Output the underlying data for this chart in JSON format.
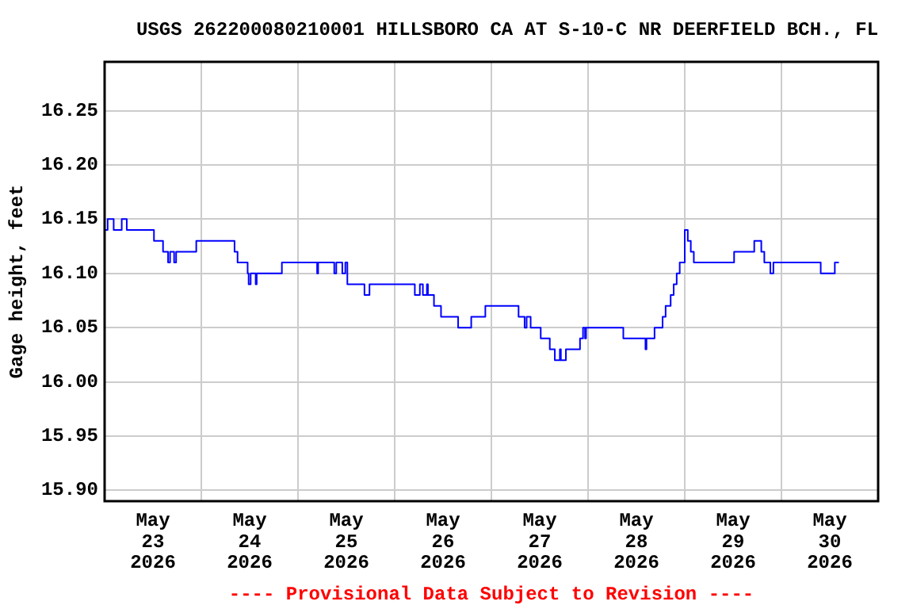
{
  "chart_data": {
    "type": "step",
    "title": "USGS 262200080210001 HILLSBORO CA AT S-10-C NR DEERFIELD BCH., FL",
    "ylabel": "Gage height, feet",
    "annotations": [
      "---- Provisional Data Subject to Revision ----"
    ],
    "x": [
      "2026-05-23T00:00",
      "2026-05-23T00:45",
      "2026-05-23T02:15",
      "2026-05-23T04:15",
      "2026-05-23T05:30",
      "2026-05-23T12:15",
      "2026-05-23T14:30",
      "2026-05-23T15:45",
      "2026-05-23T16:15",
      "2026-05-23T17:15",
      "2026-05-23T17:45",
      "2026-05-23T22:45",
      "2026-05-24T08:15",
      "2026-05-24T09:00",
      "2026-05-24T11:30",
      "2026-05-24T11:45",
      "2026-05-24T12:15",
      "2026-05-24T13:30",
      "2026-05-24T13:45",
      "2026-05-24T20:00",
      "2026-05-25T04:45",
      "2026-05-25T05:00",
      "2026-05-25T09:00",
      "2026-05-25T09:30",
      "2026-05-25T11:00",
      "2026-05-25T11:45",
      "2026-05-25T12:15",
      "2026-05-25T16:30",
      "2026-05-25T17:45",
      "2026-05-26T05:00",
      "2026-05-26T06:15",
      "2026-05-26T07:00",
      "2026-05-26T08:00",
      "2026-05-26T08:15",
      "2026-05-26T09:45",
      "2026-05-26T11:30",
      "2026-05-26T13:30",
      "2026-05-26T15:45",
      "2026-05-26T19:00",
      "2026-05-26T22:30",
      "2026-05-27T06:45",
      "2026-05-27T08:15",
      "2026-05-27T08:45",
      "2026-05-27T09:45",
      "2026-05-27T11:00",
      "2026-05-27T12:15",
      "2026-05-27T14:30",
      "2026-05-27T15:45",
      "2026-05-27T17:00",
      "2026-05-27T17:15",
      "2026-05-27T18:30",
      "2026-05-27T22:00",
      "2026-05-27T22:45",
      "2026-05-27T23:15",
      "2026-05-27T23:30",
      "2026-05-28T08:45",
      "2026-05-28T14:15",
      "2026-05-28T14:30",
      "2026-05-28T16:30",
      "2026-05-28T18:30",
      "2026-05-28T19:15",
      "2026-05-28T20:30",
      "2026-05-28T21:15",
      "2026-05-28T22:00",
      "2026-05-28T22:45",
      "2026-05-29T00:00",
      "2026-05-29T00:45",
      "2026-05-29T01:30",
      "2026-05-29T02:15",
      "2026-05-29T12:15",
      "2026-05-29T17:15",
      "2026-05-29T19:00",
      "2026-05-29T19:45",
      "2026-05-29T21:15",
      "2026-05-29T22:00",
      "2026-05-30T09:45",
      "2026-05-30T13:15",
      "2026-05-30T14:15"
    ],
    "series": [
      {
        "color": "#0000ff",
        "values": [
          16.14,
          16.15,
          16.14,
          16.15,
          16.14,
          16.13,
          16.12,
          16.11,
          16.12,
          16.11,
          16.12,
          16.13,
          16.12,
          16.11,
          16.1,
          16.09,
          16.1,
          16.09,
          16.1,
          16.11,
          16.1,
          16.11,
          16.1,
          16.11,
          16.1,
          16.11,
          16.09,
          16.08,
          16.09,
          16.08,
          16.09,
          16.08,
          16.09,
          16.08,
          16.07,
          16.06,
          16.06,
          16.05,
          16.06,
          16.07,
          16.06,
          16.05,
          16.06,
          16.05,
          16.05,
          16.04,
          16.03,
          16.02,
          16.03,
          16.02,
          16.03,
          16.04,
          16.05,
          16.04,
          16.05,
          16.04,
          16.03,
          16.04,
          16.05,
          16.06,
          16.07,
          16.08,
          16.09,
          16.1,
          16.11,
          16.14,
          16.13,
          16.12,
          16.11,
          16.12,
          16.13,
          16.12,
          16.11,
          16.1,
          16.11,
          16.1,
          16.11,
          16.11
        ]
      }
    ],
    "xlim": [
      "2026-05-23T00:00",
      "2026-05-31T00:00"
    ],
    "xticks": [
      {
        "value": "2026-05-23T12:00",
        "label": "May\n23\n2026"
      },
      {
        "value": "2026-05-24T00:00",
        "label": null
      },
      {
        "value": "2026-05-24T12:00",
        "label": "May\n24\n2026"
      },
      {
        "value": "2026-05-25T00:00",
        "label": null
      },
      {
        "value": "2026-05-25T12:00",
        "label": "May\n25\n2026"
      },
      {
        "value": "2026-05-26T00:00",
        "label": null
      },
      {
        "value": "2026-05-26T12:00",
        "label": "May\n26\n2026"
      },
      {
        "value": "2026-05-27T00:00",
        "label": null
      },
      {
        "value": "2026-05-27T12:00",
        "label": "May\n27\n2026"
      },
      {
        "value": "2026-05-28T00:00",
        "label": null
      },
      {
        "value": "2026-05-28T12:00",
        "label": "May\n28\n2026"
      },
      {
        "value": "2026-05-29T00:00",
        "label": null
      },
      {
        "value": "2026-05-29T12:00",
        "label": "May\n29\n2026"
      },
      {
        "value": "2026-05-30T00:00",
        "label": null
      },
      {
        "value": "2026-05-30T12:00",
        "label": "May\n30\n2026"
      }
    ],
    "ylim": [
      15.89,
      16.295
    ],
    "yticks": [
      {
        "value": 15.9,
        "label": "15.90"
      },
      {
        "value": 15.95,
        "label": "15.95"
      },
      {
        "value": 16,
        "label": "16.00"
      },
      {
        "value": 16.05,
        "label": "16.05"
      },
      {
        "value": 16.1,
        "label": "16.10"
      },
      {
        "value": 16.15,
        "label": "16.15"
      },
      {
        "value": 16.2,
        "label": "16.20"
      },
      {
        "value": 16.25,
        "label": "16.25"
      }
    ],
    "grid": true,
    "legend": false,
    "marker": "none",
    "line_style": "solid"
  }
}
